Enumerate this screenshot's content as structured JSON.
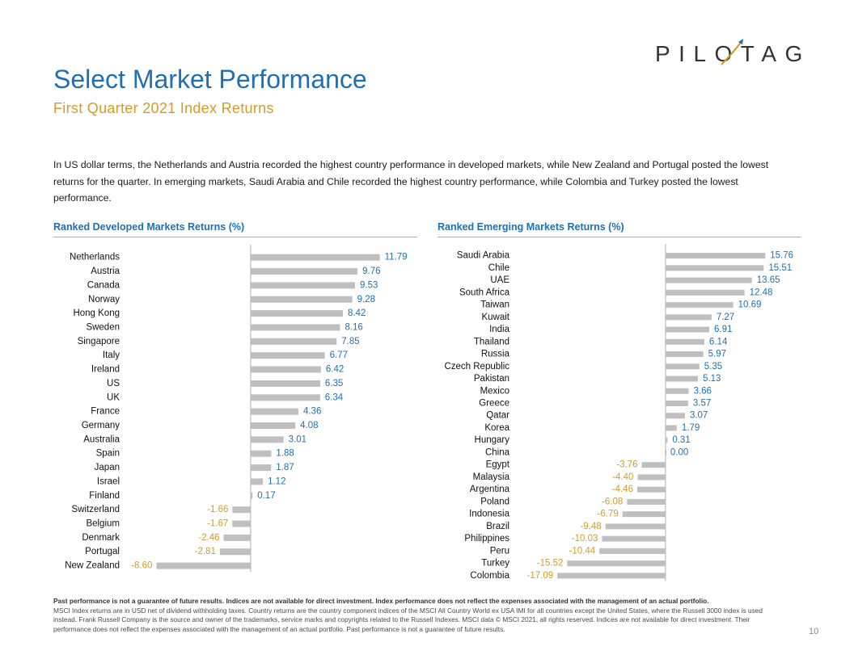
{
  "brand": {
    "logo_text": "PILOTAGE"
  },
  "header": {
    "title": "Select Market Performance",
    "subtitle": "First Quarter 2021 Index Returns"
  },
  "intro_text": "In US dollar terms, the Netherlands and Austria recorded the highest country performance in developed markets, while New Zealand and Portugal posted the lowest returns for the quarter. In emerging markets, Saudi Arabia and Chile recorded the highest country performance, while Colombia and Turkey posted the lowest performance.",
  "colors": {
    "bar": "#bfbfbf",
    "positive_label": "#1f6fb5",
    "negative_label": "#d49b2c",
    "title": "#1f6fb5",
    "accent": "#d49b2c"
  },
  "chart_data": [
    {
      "type": "bar",
      "orientation": "horizontal",
      "title": "Ranked Developed Markets Returns (%)",
      "categories": [
        "Netherlands",
        "Austria",
        "Canada",
        "Norway",
        "Hong Kong",
        "Sweden",
        "Singapore",
        "Italy",
        "Ireland",
        "US",
        "UK",
        "France",
        "Germany",
        "Australia",
        "Spain",
        "Japan",
        "Israel",
        "Finland",
        "Switzerland",
        "Belgium",
        "Denmark",
        "Portugal",
        "New Zealand"
      ],
      "values": [
        11.79,
        9.76,
        9.53,
        9.28,
        8.42,
        8.16,
        7.85,
        6.77,
        6.42,
        6.35,
        6.34,
        4.36,
        4.08,
        3.01,
        1.88,
        1.87,
        1.12,
        0.17,
        -1.66,
        -1.67,
        -2.46,
        -2.81,
        -8.6
      ],
      "value_labels": [
        "11.79",
        "9.76",
        "9.53",
        "9.28",
        "8.42",
        "8.16",
        "7.85",
        "6.77",
        "6.42",
        "6.35",
        "6.34",
        "4.36",
        "4.08",
        "3.01",
        "1.88",
        "1.87",
        "1.12",
        "0.17",
        "-1.66",
        "-1.67",
        "-2.46",
        "-2.81",
        "-8.60"
      ],
      "xlim": [
        -9,
        13
      ],
      "grid": false,
      "legend": "none"
    },
    {
      "type": "bar",
      "orientation": "horizontal",
      "title": "Ranked Emerging Markets Returns (%)",
      "categories": [
        "Saudi Arabia",
        "Chile",
        "UAE",
        "South Africa",
        "Taiwan",
        "Kuwait",
        "India",
        "Thailand",
        "Russia",
        "Czech Republic",
        "Pakistan",
        "Mexico",
        "Greece",
        "Qatar",
        "Korea",
        "Hungary",
        "China",
        "Egypt",
        "Malaysia",
        "Argentina",
        "Poland",
        "Indonesia",
        "Brazil",
        "Philippines",
        "Peru",
        "Turkey",
        "Colombia"
      ],
      "values": [
        15.76,
        15.51,
        13.65,
        12.48,
        10.69,
        7.27,
        6.91,
        6.14,
        5.97,
        5.35,
        5.13,
        3.66,
        3.57,
        3.07,
        1.79,
        0.31,
        0.0,
        -3.76,
        -4.4,
        -4.46,
        -6.08,
        -6.79,
        -9.48,
        -10.03,
        -10.44,
        -15.52,
        -17.09
      ],
      "value_labels": [
        "15.76",
        "15.51",
        "13.65",
        "12.48",
        "10.69",
        "7.27",
        "6.91",
        "6.14",
        "5.97",
        "5.35",
        "5.13",
        "3.66",
        "3.57",
        "3.07",
        "1.79",
        "0.31",
        "0.00",
        "-3.76",
        "-4.40",
        "-4.46",
        "-6.08",
        "-6.79",
        "-9.48",
        "-10.03",
        "-10.44",
        "-15.52",
        "-17.09"
      ],
      "xlim": [
        -18,
        17
      ],
      "grid": false,
      "legend": "none"
    }
  ],
  "footnote": {
    "bold_line": "Past performance is not a guarantee of future results. Indices are not available for direct investment. Index performance does not reflect the expenses associated with the management of an actual portfolio.",
    "body": "MSCI Index returns are in USD net of dividend withholding taxes. Country returns are the country component indices of the MSCI All Country World ex USA IMI for all countries except the United States, where the Russell 3000 index is used instead. Frank Russell Company is the source and owner of the trademarks, service marks and copyrights related to the Russell Indexes. MSCI data © MSCI 2021, all rights reserved. Indices are not available for direct investment. Their performance does not reflect the expenses associated with the management of an actual portfolio. Past performance is not a guarantee of future results."
  },
  "page_number": "10"
}
